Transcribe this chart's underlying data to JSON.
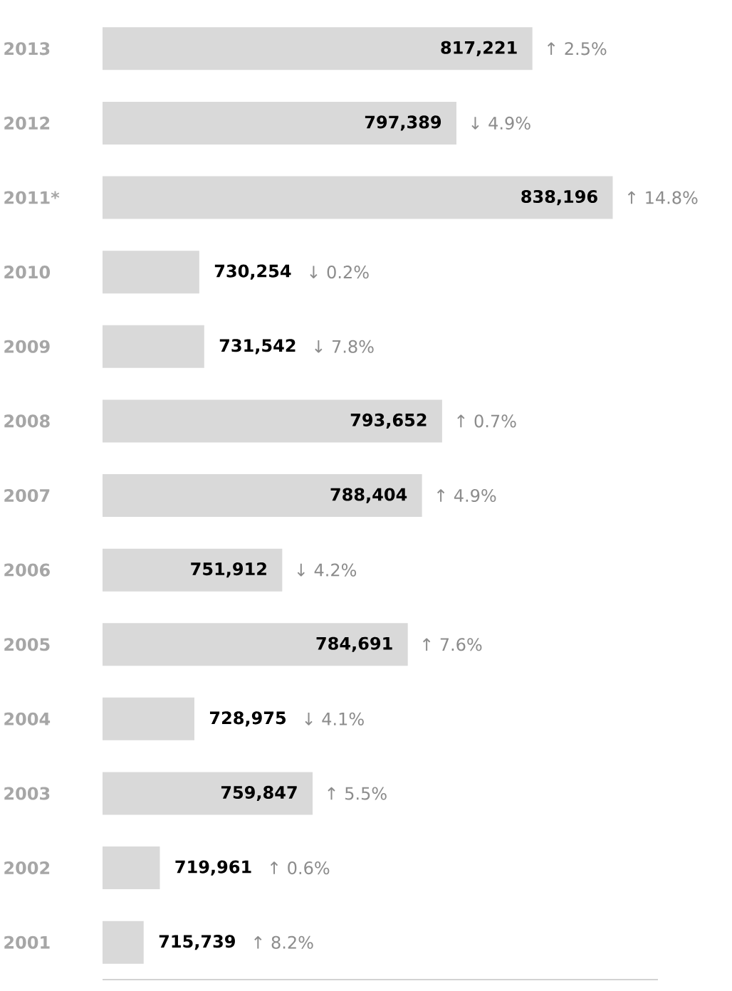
{
  "chart_data": {
    "type": "bar",
    "orientation": "horizontal",
    "categories": [
      "2013",
      "2012",
      "2011*",
      "2010",
      "2009",
      "2008",
      "2007",
      "2006",
      "2005",
      "2004",
      "2003",
      "2002",
      "2001"
    ],
    "values": [
      817221,
      797389,
      838196,
      730254,
      731542,
      793652,
      788404,
      751912,
      784691,
      728975,
      759847,
      719961,
      715739
    ],
    "value_labels": [
      "817,221",
      "797,389",
      "838,196",
      "730,254",
      "731,542",
      "793,652",
      "788,404",
      "751,912",
      "784,691",
      "728,975",
      "759,847",
      "719,961",
      "715,739"
    ],
    "color": "#d9d9d9",
    "xlim": [
      705000,
      850000
    ],
    "annotations": [
      "↑ 2.5%",
      "↓ 4.9%",
      "↑ 14.8%",
      "↓ 0.2%",
      "↓ 7.8%",
      "↑ 0.7%",
      "↑ 4.9%",
      "↓ 4.2%",
      "↑ 7.6%",
      "↓ 4.1%",
      "↑ 5.5%",
      "↑ 0.6%",
      "↑ 8.2%"
    ]
  }
}
